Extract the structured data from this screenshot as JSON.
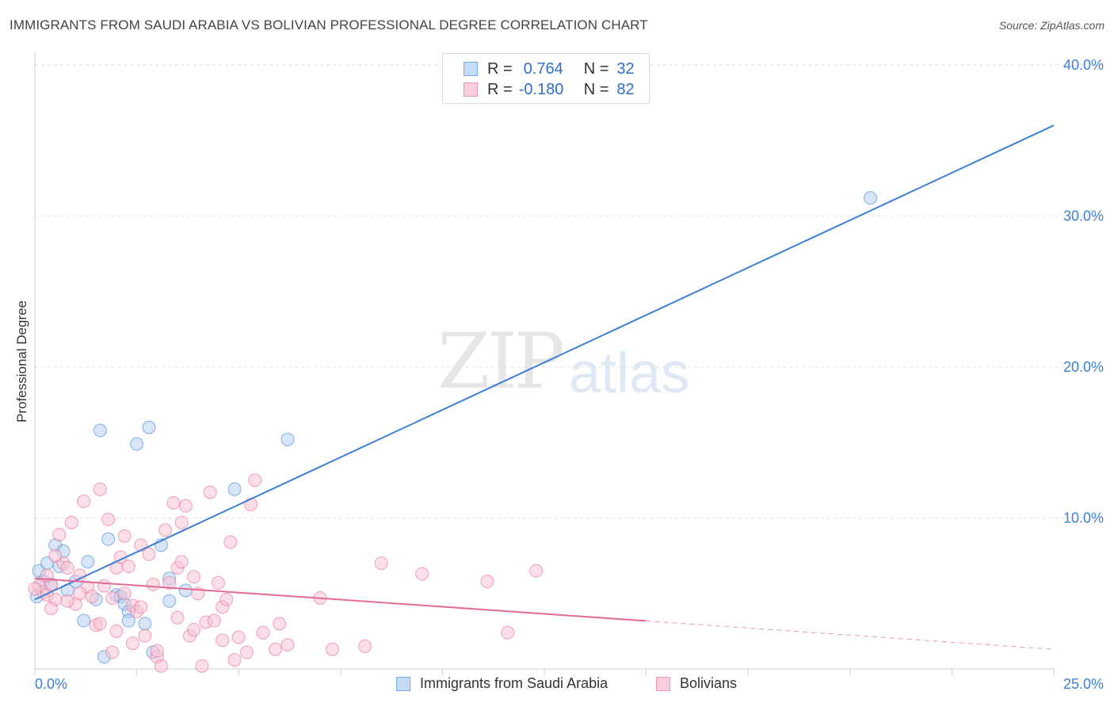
{
  "title": "IMMIGRANTS FROM SAUDI ARABIA VS BOLIVIAN PROFESSIONAL DEGREE CORRELATION CHART",
  "source": "Source: ZipAtlas.com",
  "watermark": {
    "part1": "ZIP",
    "part2": "atlas"
  },
  "legend_top": {
    "rows": [
      {
        "r_label": "R =",
        "r_value": "0.764",
        "n_label": "N =",
        "n_value": "32",
        "color": "#9fc3ef"
      },
      {
        "r_label": "R =",
        "r_value": "-0.180",
        "n_label": "N =",
        "n_value": "82",
        "color": "#f5b5c8"
      }
    ]
  },
  "legend_bottom": [
    {
      "label": "Immigrants from Saudi Arabia",
      "color": "#9fc3ef"
    },
    {
      "label": "Bolivians",
      "color": "#f5b5c8"
    }
  ],
  "chart_data": {
    "type": "scatter",
    "title": "IMMIGRANTS FROM SAUDI ARABIA VS BOLIVIAN PROFESSIONAL DEGREE CORRELATION CHART",
    "xlabel": "",
    "ylabel": "Professional Degree",
    "xlim": [
      0,
      25
    ],
    "ylim": [
      0,
      40
    ],
    "x_tick_labels": [
      "0.0%",
      "25.0%"
    ],
    "y_ticks": [
      10,
      20,
      30,
      40
    ],
    "y_tick_labels": [
      "10.0%",
      "20.0%",
      "30.0%",
      "40.0%"
    ],
    "series": [
      {
        "name": "Immigrants from Saudi Arabia",
        "color": "#3d7fd6",
        "fill": "#b4d0f2",
        "trend": {
          "x0": 0,
          "y0": 4.6,
          "x1": 25,
          "y1": 36.0,
          "dashed_from": null
        },
        "points": [
          [
            0.1,
            6.5
          ],
          [
            0.2,
            5.8
          ],
          [
            0.3,
            7.0
          ],
          [
            0.4,
            5.6
          ],
          [
            0.5,
            8.2
          ],
          [
            0.6,
            6.8
          ],
          [
            0.7,
            7.8
          ],
          [
            0.8,
            5.2
          ],
          [
            1.0,
            5.8
          ],
          [
            1.2,
            3.2
          ],
          [
            1.3,
            7.1
          ],
          [
            1.5,
            4.6
          ],
          [
            1.6,
            15.8
          ],
          [
            1.7,
            0.8
          ],
          [
            1.8,
            8.6
          ],
          [
            2.0,
            4.9
          ],
          [
            2.1,
            4.8
          ],
          [
            2.2,
            4.3
          ],
          [
            2.3,
            3.8
          ],
          [
            2.3,
            3.2
          ],
          [
            2.5,
            14.9
          ],
          [
            2.7,
            3.0
          ],
          [
            2.8,
            16.0
          ],
          [
            2.9,
            1.1
          ],
          [
            3.1,
            8.2
          ],
          [
            3.3,
            6.0
          ],
          [
            3.3,
            4.5
          ],
          [
            3.7,
            5.2
          ],
          [
            4.9,
            11.9
          ],
          [
            6.2,
            15.2
          ],
          [
            20.5,
            31.2
          ],
          [
            0.05,
            4.8
          ]
        ]
      },
      {
        "name": "Bolivians",
        "color": "#e36a94",
        "fill": "#f7c3d2",
        "trend": {
          "x0": 0,
          "y0": 6.0,
          "x1": 25,
          "y1": 1.3,
          "dashed_from": 15.0
        },
        "points": [
          [
            0.1,
            5.5
          ],
          [
            0.2,
            5.1
          ],
          [
            0.3,
            4.9
          ],
          [
            0.4,
            5.6
          ],
          [
            0.5,
            4.6
          ],
          [
            0.6,
            8.9
          ],
          [
            0.7,
            7.0
          ],
          [
            0.8,
            6.7
          ],
          [
            0.9,
            9.7
          ],
          [
            1.0,
            4.3
          ],
          [
            1.1,
            6.2
          ],
          [
            1.2,
            11.1
          ],
          [
            1.3,
            5.4
          ],
          [
            1.4,
            4.8
          ],
          [
            1.5,
            2.9
          ],
          [
            1.6,
            11.9
          ],
          [
            1.7,
            5.5
          ],
          [
            1.8,
            9.9
          ],
          [
            1.9,
            4.7
          ],
          [
            2.0,
            6.7
          ],
          [
            2.1,
            7.4
          ],
          [
            2.2,
            5.0
          ],
          [
            2.3,
            6.8
          ],
          [
            2.4,
            4.2
          ],
          [
            2.5,
            3.8
          ],
          [
            2.6,
            8.2
          ],
          [
            2.7,
            2.2
          ],
          [
            2.8,
            7.6
          ],
          [
            2.9,
            5.6
          ],
          [
            3.0,
            0.8
          ],
          [
            3.1,
            0.2
          ],
          [
            3.2,
            9.2
          ],
          [
            3.3,
            5.7
          ],
          [
            3.4,
            11.0
          ],
          [
            3.5,
            6.7
          ],
          [
            3.6,
            9.7
          ],
          [
            3.7,
            10.8
          ],
          [
            3.8,
            2.2
          ],
          [
            3.9,
            6.1
          ],
          [
            4.0,
            5.0
          ],
          [
            4.1,
            0.2
          ],
          [
            4.2,
            3.1
          ],
          [
            4.3,
            11.7
          ],
          [
            4.4,
            3.2
          ],
          [
            4.5,
            5.7
          ],
          [
            4.6,
            4.1
          ],
          [
            4.7,
            4.6
          ],
          [
            4.8,
            8.4
          ],
          [
            4.9,
            0.6
          ],
          [
            5.0,
            2.1
          ],
          [
            5.2,
            1.1
          ],
          [
            5.3,
            10.9
          ],
          [
            5.4,
            12.5
          ],
          [
            5.6,
            2.4
          ],
          [
            5.9,
            1.3
          ],
          [
            6.0,
            3.0
          ],
          [
            6.2,
            1.6
          ],
          [
            7.0,
            4.7
          ],
          [
            7.3,
            1.3
          ],
          [
            8.1,
            1.5
          ],
          [
            8.5,
            7.0
          ],
          [
            9.5,
            6.3
          ],
          [
            11.1,
            5.8
          ],
          [
            11.6,
            2.4
          ],
          [
            12.3,
            6.5
          ],
          [
            2.0,
            2.5
          ],
          [
            2.4,
            1.7
          ],
          [
            3.0,
            1.2
          ],
          [
            3.5,
            3.4
          ],
          [
            1.6,
            3.0
          ],
          [
            0.4,
            4.0
          ],
          [
            0.8,
            4.5
          ],
          [
            1.1,
            5.0
          ],
          [
            2.6,
            4.1
          ],
          [
            3.9,
            2.6
          ],
          [
            4.6,
            1.9
          ],
          [
            1.9,
            1.1
          ],
          [
            0.3,
            6.2
          ],
          [
            0.5,
            7.5
          ],
          [
            2.2,
            8.8
          ],
          [
            3.6,
            7.1
          ],
          [
            0.0,
            5.3
          ]
        ]
      }
    ]
  }
}
